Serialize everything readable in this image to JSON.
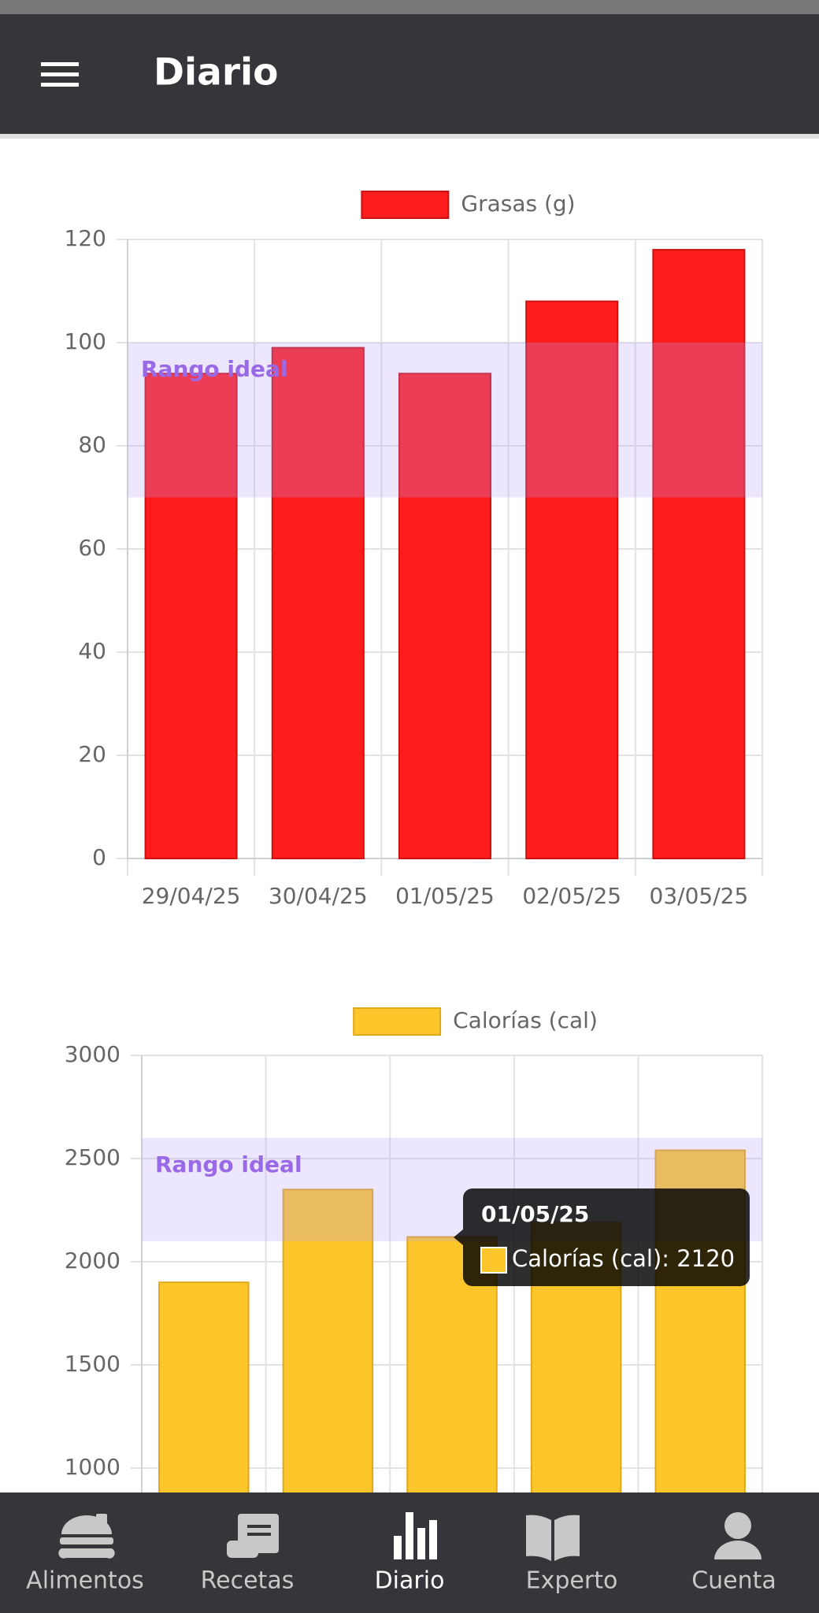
{
  "app_bar": {
    "title": "Diario"
  },
  "chart_data": [
    {
      "type": "bar",
      "categories": [
        "29/04/25",
        "30/04/25",
        "01/05/25",
        "02/05/25",
        "03/05/25"
      ],
      "series": [
        {
          "name": "Grasas (g)",
          "color": "#ff1c1c",
          "values": [
            94,
            99,
            94,
            108,
            118
          ]
        }
      ],
      "ylim": [
        0,
        120
      ],
      "yticks": [
        0,
        20,
        40,
        60,
        80,
        100,
        120
      ],
      "grid": true,
      "annotations": [
        {
          "label": "Rango ideal",
          "ymin": 70,
          "ymax": 100
        }
      ]
    },
    {
      "type": "bar",
      "series": [
        {
          "name": "Calorías (cal)",
          "color": "#fdc72c",
          "values": [
            1900,
            2350,
            2120,
            2190,
            2540
          ]
        }
      ],
      "ylim": [
        0,
        3000
      ],
      "yticks": [
        1000,
        1500,
        2000,
        2500,
        3000
      ],
      "grid": true,
      "annotations": [
        {
          "label": "Rango ideal",
          "ymin": 2100,
          "ymax": 2600
        }
      ],
      "tooltip": {
        "title": "01/05/25",
        "label": "Calorías (cal): 2120"
      }
    }
  ],
  "nav": {
    "items": [
      {
        "label": "Alimentos",
        "selected": false
      },
      {
        "label": "Recetas",
        "selected": false
      },
      {
        "label": "Diario",
        "selected": true
      },
      {
        "label": "Experto",
        "selected": false
      },
      {
        "label": "Cuenta",
        "selected": false
      }
    ]
  }
}
